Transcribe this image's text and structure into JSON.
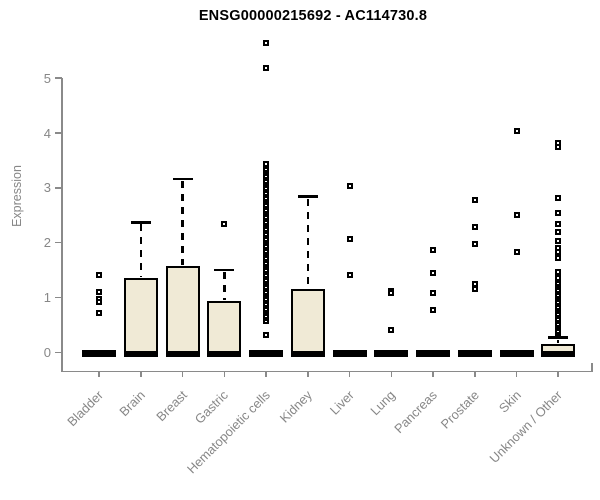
{
  "chart_data": {
    "type": "boxplot",
    "title": "ENSG00000215692 - AC114730.8",
    "ylabel": "Expression",
    "xlabel": "",
    "yticks": [
      0,
      1,
      2,
      3,
      4,
      5
    ],
    "ylim": [
      0,
      5.8
    ],
    "grid": false,
    "legend": false,
    "categories": [
      "Bladder",
      "Brain",
      "Breast",
      "Gastric",
      "Hematopoietic cells",
      "Kidney",
      "Liver",
      "Lung",
      "Pancreas",
      "Prostate",
      "Skin",
      "Unknown / Other"
    ],
    "series": [
      {
        "category": "Bladder",
        "median": 0,
        "q1": 0,
        "q3": 0,
        "whisker_high": 0,
        "outliers": [
          1.41,
          1.1,
          0.97,
          0.92,
          0.72
        ]
      },
      {
        "category": "Brain",
        "median": 0,
        "q1": 0,
        "q3": 1.35,
        "whisker_high": 2.37,
        "outliers": []
      },
      {
        "category": "Breast",
        "median": 0,
        "q1": 0,
        "q3": 1.57,
        "whisker_high": 3.16,
        "outliers": []
      },
      {
        "category": "Gastric",
        "median": 0,
        "q1": 0,
        "q3": 0.93,
        "whisker_high": 1.5,
        "outliers": [
          2.35
        ]
      },
      {
        "category": "Hematopoietic cells",
        "median": 0,
        "q1": 0,
        "q3": 0,
        "whisker_high": 0,
        "outliers": [
          5.64,
          5.19,
          0.31
        ],
        "outlier_stack": {
          "from": 0.58,
          "to": 3.45
        }
      },
      {
        "category": "Kidney",
        "median": 0,
        "q1": 0,
        "q3": 1.15,
        "whisker_high": 2.84,
        "outliers": []
      },
      {
        "category": "Liver",
        "median": 0,
        "q1": 0,
        "q3": 0,
        "whisker_high": 0,
        "outliers": [
          3.03,
          2.06,
          1.42
        ]
      },
      {
        "category": "Lung",
        "median": 0,
        "q1": 0,
        "q3": 0,
        "whisker_high": 0,
        "outliers": [
          1.12,
          1.09,
          0.4
        ]
      },
      {
        "category": "Pancreas",
        "median": 0,
        "q1": 0,
        "q3": 0,
        "whisker_high": 0,
        "outliers": [
          1.86,
          1.44,
          1.08,
          0.77
        ]
      },
      {
        "category": "Prostate",
        "median": 0,
        "q1": 0,
        "q3": 0,
        "whisker_high": 0,
        "outliers": [
          2.77,
          2.28,
          1.97,
          1.24,
          1.15
        ]
      },
      {
        "category": "Skin",
        "median": 0,
        "q1": 0,
        "q3": 0,
        "whisker_high": 0,
        "outliers": [
          4.03,
          2.5,
          1.83
        ]
      },
      {
        "category": "Unknown / Other",
        "median": 0,
        "q1": 0,
        "q3": 0.15,
        "whisker_high": 0.27,
        "outliers": [
          3.81,
          3.74,
          2.81,
          2.55,
          2.35,
          2.19,
          2.04,
          1.9,
          1.83,
          1.72,
          1.46
        ],
        "outlier_stack": {
          "from": 0.35,
          "to": 1.37
        }
      }
    ],
    "colors": {
      "box_fill": "#F0EAD6",
      "box_border": "#000000",
      "whisker": "#000000",
      "outlier": "#000000",
      "axis": "#8A8A8A",
      "tick_text": "#878787",
      "title_text": "#000000",
      "background": "#FFFFFF"
    }
  }
}
